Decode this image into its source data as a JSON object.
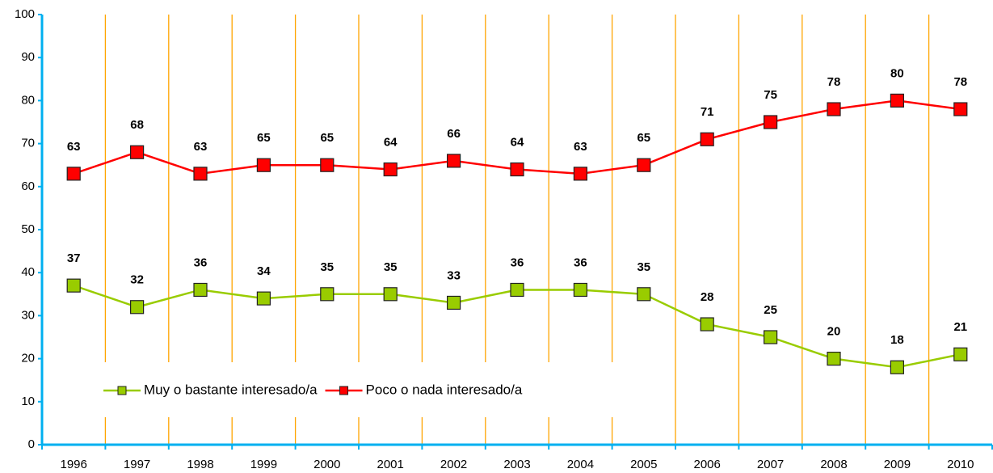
{
  "chart_data": {
    "type": "line",
    "categories": [
      "1996",
      "1997",
      "1998",
      "1999",
      "2000",
      "2001",
      "2002",
      "2003",
      "2004",
      "2005",
      "2006",
      "2007",
      "2008",
      "2009",
      "2010"
    ],
    "series": [
      {
        "name": "Muy o bastante interesado/a",
        "color": "#99cc00",
        "values": [
          37,
          32,
          36,
          34,
          35,
          35,
          33,
          36,
          36,
          35,
          28,
          25,
          20,
          18,
          21
        ]
      },
      {
        "name": "Poco o nada interesado/a",
        "color": "#ff0000",
        "values": [
          63,
          68,
          63,
          65,
          65,
          64,
          66,
          64,
          63,
          65,
          71,
          75,
          78,
          80,
          78
        ]
      }
    ],
    "ylim": [
      0,
      100
    ],
    "yticks": [
      0,
      10,
      20,
      30,
      40,
      50,
      60,
      70,
      80,
      90,
      100
    ],
    "axis_color": "#00b0f0",
    "separator_color": "#ffa500",
    "legend": "inside"
  }
}
